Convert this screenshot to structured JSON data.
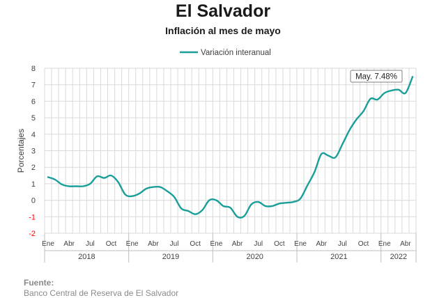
{
  "title": "El Salvador",
  "subtitle": "Inflación al mes de mayo",
  "source": {
    "heading": "Fuente:",
    "text": "Banco Central de Reserva de El Salvador"
  },
  "colors": {
    "line": "#1a9e9a",
    "grid": "#d9d9d9",
    "negative_tick": "#ff0000",
    "axis_text": "#404040"
  },
  "chart_data": {
    "type": "line",
    "title": "El Salvador",
    "subtitle": "Inflación al mes de mayo",
    "ylabel": "Porcentajes",
    "ylim": [
      -2,
      8
    ],
    "yticks": [
      -2,
      -1,
      0,
      1,
      2,
      3,
      4,
      5,
      6,
      7,
      8
    ],
    "grid": true,
    "legend_position": "top-center",
    "x_month_labels": [
      "Ene",
      "Abr",
      "Jul",
      "Oct",
      "Ene",
      "Abr",
      "Jul",
      "Oct",
      "Ene",
      "Abr",
      "Jul",
      "Oct",
      "Ene",
      "Abr",
      "Jul",
      "Oct",
      "Ene",
      "Abr"
    ],
    "x_month_index": [
      0,
      3,
      6,
      9,
      12,
      15,
      18,
      21,
      24,
      27,
      30,
      33,
      36,
      39,
      42,
      45,
      48,
      51
    ],
    "x_year_labels": [
      "2018",
      "2019",
      "2020",
      "2021",
      "2022"
    ],
    "x_year_span": [
      [
        0,
        12
      ],
      [
        12,
        24
      ],
      [
        24,
        36
      ],
      [
        36,
        48
      ],
      [
        48,
        53
      ]
    ],
    "x_period_count": 53,
    "series": [
      {
        "name": "Variación interanual",
        "color": "#1a9e9a",
        "values": [
          1.4,
          1.25,
          0.95,
          0.85,
          0.85,
          0.85,
          1.0,
          1.45,
          1.35,
          1.5,
          1.1,
          0.35,
          0.25,
          0.4,
          0.7,
          0.8,
          0.8,
          0.55,
          0.2,
          -0.5,
          -0.65,
          -0.85,
          -0.6,
          0.0,
          0.0,
          -0.35,
          -0.45,
          -1.0,
          -0.95,
          -0.25,
          -0.1,
          -0.35,
          -0.35,
          -0.2,
          -0.15,
          -0.1,
          0.1,
          0.9,
          1.7,
          2.8,
          2.7,
          2.6,
          3.4,
          4.25,
          4.9,
          5.4,
          6.15,
          6.1,
          6.5,
          6.65,
          6.7,
          6.5,
          7.48
        ]
      }
    ],
    "annotation": {
      "text": "May. 7.48%",
      "index": 52
    }
  }
}
